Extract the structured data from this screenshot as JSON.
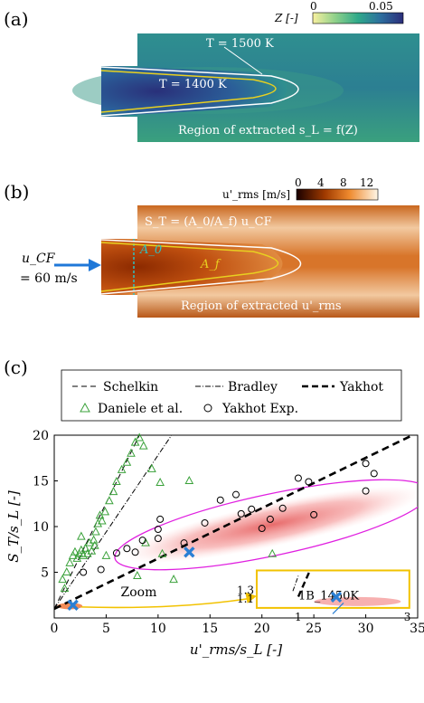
{
  "panel_a": {
    "label": "(a)",
    "colorbar_label": "Z [-]",
    "colorbar_min": "0",
    "colorbar_max": "0.05",
    "iso_1500": "T = 1500 K",
    "iso_1400": "T = 1400 K",
    "region_text": "Region of extracted s_L = f(Z)"
  },
  "panel_b": {
    "label": "(b)",
    "colorbar_label": "u'_rms [m/s]",
    "colorbar_ticks": [
      "0",
      "4",
      "8",
      "12"
    ],
    "st_formula": "S_T = (A_0/A_f) u_CF",
    "a0": "A_0",
    "af": "A_f",
    "inflow_label": "u_CF",
    "inflow_value": "= 60 m/s",
    "region_text": "Region of extracted u'_rms"
  },
  "panel_c": {
    "label": "(c)",
    "legend": {
      "schelkin": "Schelkin",
      "bradley": "Bradley",
      "yakhot": "Yakhot",
      "daniele": "Daniele et al.",
      "yakhot_exp": "Yakhot Exp."
    },
    "zoom_label": "Zoom",
    "inset_label": "1B_1450K",
    "inset_ticks": {
      "y_top": "1.3",
      "y_bottom": "1.1",
      "x_left": "1",
      "x_right": "3"
    }
  },
  "chart_data": {
    "type": "scatter",
    "xlabel": "u'_rms/s_L [-]",
    "ylabel": "S_T/s_L [-]",
    "xlim": [
      0,
      35
    ],
    "ylim": [
      0,
      20
    ],
    "xticks": [
      0,
      5,
      10,
      15,
      20,
      25,
      30,
      35
    ],
    "yticks": [
      5,
      10,
      15,
      20
    ],
    "series": [
      {
        "name": "Daniele et al.",
        "marker": "triangle",
        "color": "#3aa13a",
        "points": [
          [
            0.8,
            4.2
          ],
          [
            1.2,
            5.0
          ],
          [
            1.5,
            6.0
          ],
          [
            1.8,
            6.8
          ],
          [
            2.0,
            7.2
          ],
          [
            2.2,
            6.5
          ],
          [
            2.4,
            7.0
          ],
          [
            2.6,
            7.4
          ],
          [
            2.8,
            6.8
          ],
          [
            3.0,
            7.6
          ],
          [
            3.2,
            7.0
          ],
          [
            3.4,
            8.2
          ],
          [
            3.6,
            7.3
          ],
          [
            3.8,
            8.5
          ],
          [
            4.0,
            9.4
          ],
          [
            4.2,
            10.3
          ],
          [
            4.4,
            11.2
          ],
          [
            4.6,
            10.6
          ],
          [
            4.9,
            11.6
          ],
          [
            5.3,
            12.8
          ],
          [
            5.7,
            13.8
          ],
          [
            6.0,
            14.9
          ],
          [
            6.5,
            16.2
          ],
          [
            7.0,
            17.0
          ],
          [
            7.4,
            18.0
          ],
          [
            7.8,
            19.2
          ],
          [
            8.2,
            19.7
          ],
          [
            8.6,
            18.8
          ],
          [
            9.4,
            16.3
          ],
          [
            10.2,
            14.8
          ],
          [
            13.0,
            15.0
          ],
          [
            10.4,
            7.0
          ],
          [
            8.8,
            8.2
          ],
          [
            8.0,
            4.6
          ],
          [
            21.0,
            7.0
          ],
          [
            11.5,
            4.2
          ],
          [
            1.0,
            3.2
          ],
          [
            2.6,
            8.9
          ],
          [
            3.9,
            7.9
          ],
          [
            5.0,
            6.8
          ]
        ]
      },
      {
        "name": "Yakhot Exp.",
        "marker": "circle",
        "color": "#000000",
        "points": [
          [
            2.8,
            5.0
          ],
          [
            4.5,
            5.3
          ],
          [
            6.0,
            7.1
          ],
          [
            7.0,
            7.6
          ],
          [
            7.8,
            7.2
          ],
          [
            8.5,
            8.5
          ],
          [
            10.0,
            8.7
          ],
          [
            10.0,
            9.7
          ],
          [
            10.2,
            10.8
          ],
          [
            12.5,
            8.2
          ],
          [
            14.5,
            10.4
          ],
          [
            16.0,
            12.9
          ],
          [
            17.5,
            13.5
          ],
          [
            18.0,
            11.4
          ],
          [
            19.0,
            11.9
          ],
          [
            20.0,
            9.8
          ],
          [
            20.8,
            10.8
          ],
          [
            22.0,
            12.0
          ],
          [
            23.5,
            15.3
          ],
          [
            24.5,
            14.9
          ],
          [
            25.0,
            11.3
          ],
          [
            30.0,
            16.9
          ],
          [
            30.8,
            15.8
          ],
          [
            30.0,
            13.9
          ]
        ]
      }
    ],
    "lines": [
      {
        "name": "Schelkin",
        "style": "dashed-thin",
        "points": [
          [
            0,
            1.0
          ],
          [
            8.2,
            20.0
          ]
        ]
      },
      {
        "name": "Bradley",
        "style": "dashdot",
        "points": [
          [
            0,
            1.0
          ],
          [
            11.3,
            20.0
          ]
        ]
      },
      {
        "name": "Yakhot",
        "style": "dashed-thick",
        "points": [
          [
            0,
            1.0
          ],
          [
            34.5,
            20.0
          ]
        ]
      }
    ],
    "highlight": {
      "name": "1B_1450K",
      "marker": "x",
      "color": "#2a7fd4",
      "points": [
        [
          1.8,
          1.4
        ],
        [
          13.0,
          7.2
        ]
      ]
    },
    "region": {
      "center": [
        21,
        10.2
      ],
      "description": "DNS density cloud enclosed by magenta ellipse"
    }
  }
}
